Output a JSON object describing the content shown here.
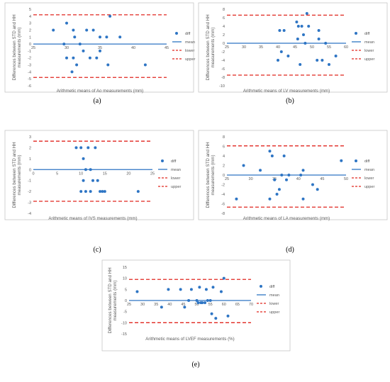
{
  "colors": {
    "diff": "#2e75c4",
    "mean": "#2e75c4",
    "bounds": "#e0261f",
    "frame": "#bfbfbf",
    "tick": "#595959"
  },
  "legend": {
    "diff": "diff",
    "mean": "mean",
    "lower": "lower",
    "upper": "upper"
  },
  "chart_data": [
    {
      "id": "a",
      "type": "scatter",
      "caption": "(a)",
      "xlabel": "Arithmetic means of Ao measurements (mm)",
      "ylabel": "Differences between STD and HH measurements (mm)",
      "xlim": [
        25,
        45
      ],
      "ylim": [
        -6,
        5
      ],
      "xticks": [
        25,
        30,
        35,
        40,
        45
      ],
      "yticks": [
        -6,
        -5,
        -4,
        -3,
        -2,
        -1,
        0,
        1,
        2,
        3,
        4,
        5
      ],
      "mean": 0,
      "lower": -4.8,
      "upper": 4.2,
      "points": [
        [
          28,
          2
        ],
        [
          29.6,
          0
        ],
        [
          30,
          3
        ],
        [
          30,
          -2
        ],
        [
          30.8,
          -4
        ],
        [
          31,
          -2
        ],
        [
          31,
          2
        ],
        [
          31.2,
          1
        ],
        [
          31.5,
          -3
        ],
        [
          32,
          0
        ],
        [
          32.5,
          -1
        ],
        [
          33,
          2
        ],
        [
          33.5,
          -2
        ],
        [
          34,
          2
        ],
        [
          34.5,
          -2
        ],
        [
          35,
          -1
        ],
        [
          35,
          1
        ],
        [
          36,
          1
        ],
        [
          36.2,
          -3
        ],
        [
          36.5,
          4
        ],
        [
          38,
          1
        ],
        [
          41.8,
          -3
        ]
      ]
    },
    {
      "id": "b",
      "type": "scatter",
      "caption": "(b)",
      "xlabel": "Arithmetic means of LV measurements (mm)",
      "ylabel": "Differences between STD and HH measurements (mm)",
      "xlim": [
        25,
        60
      ],
      "ylim": [
        -10,
        8
      ],
      "xticks": [
        25,
        30,
        35,
        40,
        45,
        50,
        55,
        60
      ],
      "yticks": [
        -10,
        -8,
        -6,
        -4,
        -2,
        0,
        2,
        4,
        6,
        8
      ],
      "mean": 0,
      "lower": -7.5,
      "upper": 6.6,
      "points": [
        [
          40,
          -4
        ],
        [
          40.5,
          3
        ],
        [
          41,
          -2
        ],
        [
          41.8,
          3
        ],
        [
          43,
          -3
        ],
        [
          45.5,
          5
        ],
        [
          45.8,
          1
        ],
        [
          46,
          4
        ],
        [
          46.5,
          -5
        ],
        [
          47,
          4
        ],
        [
          47.5,
          2
        ],
        [
          48.5,
          7
        ],
        [
          48,
          0
        ],
        [
          49,
          4
        ],
        [
          51.5,
          -4
        ],
        [
          52,
          3
        ],
        [
          52,
          1
        ],
        [
          53,
          -4
        ],
        [
          54,
          0
        ],
        [
          55,
          -5
        ],
        [
          57,
          -3
        ]
      ]
    },
    {
      "id": "c",
      "type": "scatter",
      "caption": "(c)",
      "xlabel": "Arithmetic means of IVS measurements (mm)",
      "ylabel": "Differences between STD and HH measurements (mm)",
      "xlim": [
        0,
        25
      ],
      "ylim": [
        -4,
        3
      ],
      "xticks": [
        0,
        5,
        10,
        15,
        20,
        25
      ],
      "yticks": [
        -4,
        -3,
        -2,
        -1,
        0,
        1,
        2,
        3
      ],
      "mean": 0,
      "lower": -2.9,
      "upper": 2.6,
      "points": [
        [
          9,
          2
        ],
        [
          10,
          2
        ],
        [
          10,
          -2
        ],
        [
          10.5,
          1
        ],
        [
          10.5,
          -1
        ],
        [
          11,
          0
        ],
        [
          11,
          -2
        ],
        [
          11.5,
          2
        ],
        [
          12,
          -2
        ],
        [
          12,
          0
        ],
        [
          12.5,
          -1
        ],
        [
          13,
          2
        ],
        [
          13.5,
          -1
        ],
        [
          14,
          -2
        ],
        [
          14.5,
          -2
        ],
        [
          15,
          -2
        ],
        [
          22,
          -2
        ]
      ]
    },
    {
      "id": "d",
      "type": "scatter",
      "caption": "(d)",
      "xlabel": "Arithmetic means of LA measurements (mm)",
      "ylabel": "Differences between STD and HH measurements (mm)",
      "xlim": [
        25,
        50
      ],
      "ylim": [
        -8,
        8
      ],
      "xticks": [
        25,
        30,
        35,
        40,
        45,
        50
      ],
      "yticks": [
        -8,
        -6,
        -4,
        -2,
        0,
        2,
        4,
        6,
        8
      ],
      "mean": 0,
      "lower": -6.7,
      "upper": 6.1,
      "points": [
        [
          27,
          -5
        ],
        [
          28.5,
          2
        ],
        [
          32,
          1
        ],
        [
          34,
          -5
        ],
        [
          34,
          5
        ],
        [
          34.5,
          4
        ],
        [
          35,
          -1
        ],
        [
          35.5,
          -4
        ],
        [
          36,
          -3
        ],
        [
          36.5,
          0
        ],
        [
          37,
          4
        ],
        [
          37.5,
          -1
        ],
        [
          38,
          0
        ],
        [
          40.5,
          0
        ],
        [
          41,
          -5
        ],
        [
          41,
          1
        ],
        [
          43,
          -2
        ],
        [
          44,
          -3
        ],
        [
          49,
          3
        ]
      ]
    },
    {
      "id": "e",
      "type": "scatter",
      "caption": "(e)",
      "xlabel": "Arithmetic means of LVEF measurements (%)",
      "ylabel": "Differences between STD and HH measurements (mm)",
      "xlim": [
        25,
        70
      ],
      "ylim": [
        -15,
        15
      ],
      "xticks": [
        25,
        30,
        35,
        40,
        45,
        50,
        55,
        60,
        65,
        70
      ],
      "yticks": [
        -15,
        -10,
        -5,
        0,
        5,
        10,
        15
      ],
      "mean": 0,
      "lower": -10,
      "upper": 9.5,
      "points": [
        [
          28,
          4
        ],
        [
          37,
          -3
        ],
        [
          39.5,
          5
        ],
        [
          44,
          5
        ],
        [
          45.5,
          -3
        ],
        [
          47,
          0
        ],
        [
          48,
          5
        ],
        [
          50,
          0
        ],
        [
          50.5,
          -1
        ],
        [
          51,
          6
        ],
        [
          51.5,
          -1
        ],
        [
          52,
          -1
        ],
        [
          53,
          -1
        ],
        [
          53.5,
          5
        ],
        [
          54,
          0
        ],
        [
          55,
          0
        ],
        [
          55.5,
          -6
        ],
        [
          56,
          6
        ],
        [
          57,
          -8
        ],
        [
          59,
          4
        ],
        [
          60,
          10
        ],
        [
          61.5,
          -7
        ]
      ]
    }
  ]
}
